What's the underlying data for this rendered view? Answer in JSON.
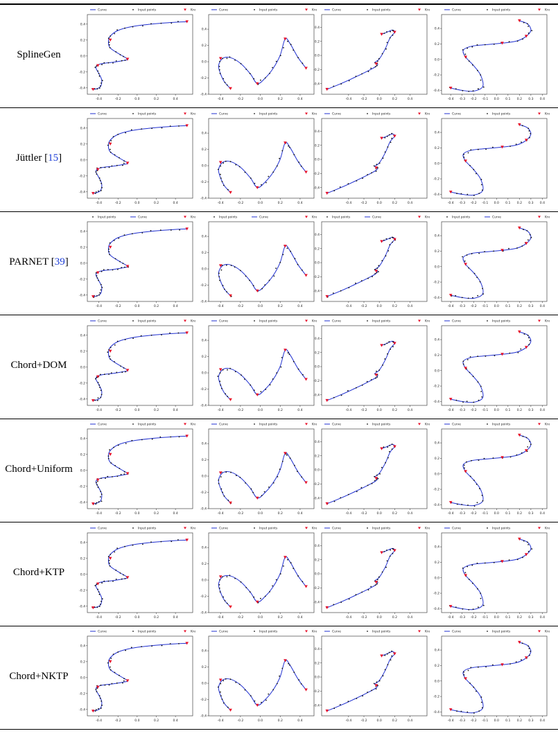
{
  "methods": [
    {
      "name": "SplineGen",
      "cite": "",
      "legend": [
        "Curve",
        "Input points",
        "Knot"
      ]
    },
    {
      "name": "Jüttler [",
      "cite": "15",
      "close": "]",
      "legend": [
        "Curve",
        "Input points",
        "Knot"
      ]
    },
    {
      "name": "PARNET [",
      "cite": "39",
      "close": "]",
      "legend": [
        "Input points",
        "Curve",
        "Knot"
      ]
    },
    {
      "name": "Chord+DOM",
      "cite": "",
      "legend": [
        "Curve",
        "Input points",
        "Knot"
      ]
    },
    {
      "name": "Chord+Uniform",
      "cite": "",
      "legend": [
        "Curve",
        "Input points",
        "Knot"
      ]
    },
    {
      "name": "Chord+KTP",
      "cite": "",
      "legend": [
        "Curve",
        "Input points",
        "Knot"
      ]
    },
    {
      "name": "Chord+NKTP",
      "cite": "",
      "legend": [
        "Curve",
        "Input points",
        "Knot"
      ]
    }
  ],
  "colors": {
    "curve": "#1f2fd0",
    "points": "#111111",
    "knot": "#e8102a",
    "frame": "#444444"
  },
  "chart_data": [
    {
      "type": "line",
      "panel": "column 1 (all rows)",
      "xlim": [
        -0.52,
        0.58
      ],
      "ylim": [
        -0.48,
        0.52
      ],
      "xticks": [
        "-0.4",
        "-0.2",
        "0.0",
        "0.2",
        "0.4"
      ],
      "yticks": [
        "-0.4",
        "-0.2",
        "0.0",
        "0.2",
        "0.4"
      ],
      "series": [
        {
          "name": "Curve",
          "x": [
            -0.46,
            -0.42,
            -0.38,
            -0.37,
            -0.4,
            -0.43,
            -0.41,
            -0.34,
            -0.26,
            -0.16,
            -0.1,
            -0.18,
            -0.28,
            -0.3,
            -0.28,
            -0.2,
            -0.05,
            0.15,
            0.35,
            0.52
          ],
          "y": [
            -0.42,
            -0.41,
            -0.38,
            -0.3,
            -0.22,
            -0.15,
            -0.11,
            -0.09,
            -0.08,
            -0.06,
            -0.04,
            0.02,
            0.1,
            0.18,
            0.25,
            0.32,
            0.37,
            0.4,
            0.42,
            0.43
          ]
        }
      ],
      "knots_x": [
        -0.46,
        -0.41,
        -0.1,
        -0.28,
        0.52
      ],
      "knots_y": [
        -0.42,
        -0.12,
        -0.04,
        0.2,
        0.43
      ]
    },
    {
      "type": "line",
      "panel": "column 2 (all rows)",
      "xlim": [
        -0.52,
        0.54
      ],
      "ylim": [
        -0.4,
        0.58
      ],
      "xticks": [
        "-0.4",
        "-0.2",
        "0.0",
        "0.2",
        "0.4"
      ],
      "yticks": [
        "-0.4",
        "-0.2",
        "0.0",
        "0.2",
        "0.4"
      ],
      "series": [
        {
          "name": "Curve",
          "x": [
            -0.3,
            -0.36,
            -0.4,
            -0.42,
            -0.38,
            -0.3,
            -0.2,
            -0.1,
            -0.03,
            0.05,
            0.13,
            0.2,
            0.25,
            0.3,
            0.38,
            0.46
          ],
          "y": [
            -0.33,
            -0.25,
            -0.15,
            -0.05,
            0.04,
            0.05,
            -0.02,
            -0.15,
            -0.27,
            -0.2,
            -0.08,
            0.08,
            0.28,
            0.22,
            0.05,
            -0.08
          ]
        }
      ],
      "knots_x": [
        -0.3,
        -0.4,
        -0.03,
        0.25,
        0.46
      ],
      "knots_y": [
        -0.33,
        0.04,
        -0.27,
        0.28,
        -0.08
      ]
    },
    {
      "type": "line",
      "panel": "column 3 (all rows)",
      "xlim": [
        -0.75,
        0.62
      ],
      "ylim": [
        -0.55,
        0.58
      ],
      "xticks": [
        "-0.4",
        "-0.2",
        "0.0",
        "0.2",
        "0.4"
      ],
      "yticks": [
        "-0.4",
        "-0.2",
        "0.0",
        "0.2",
        "0.4"
      ],
      "series": [
        {
          "name": "Curve",
          "x": [
            -0.68,
            -0.5,
            -0.3,
            -0.15,
            -0.05,
            -0.02,
            -0.06,
            0.0,
            0.08,
            0.14,
            0.2,
            0.17,
            0.1,
            0.03
          ],
          "y": [
            -0.48,
            -0.4,
            -0.3,
            -0.22,
            -0.16,
            -0.12,
            -0.1,
            -0.05,
            0.1,
            0.25,
            0.33,
            0.36,
            0.33,
            0.3
          ]
        }
      ],
      "knots_x": [
        -0.68,
        -0.04,
        0.2,
        0.03
      ],
      "knots_y": [
        -0.48,
        -0.12,
        0.33,
        0.3
      ]
    },
    {
      "type": "line",
      "panel": "column 4 (all rows)",
      "xlim": [
        -0.48,
        0.44
      ],
      "ylim": [
        -0.45,
        0.58
      ],
      "xticks": [
        "-0.4",
        "-0.3",
        "-0.2",
        "-0.1",
        "0.0",
        "0.1",
        "0.2",
        "0.3",
        "0.4"
      ],
      "yticks": [
        "-0.4",
        "-0.2",
        "0.0",
        "0.2",
        "0.4"
      ],
      "series": [
        {
          "name": "Curve",
          "x": [
            -0.4,
            -0.3,
            -0.2,
            -0.12,
            -0.14,
            -0.2,
            -0.27,
            -0.29,
            -0.22,
            -0.1,
            0.05,
            0.18,
            0.26,
            0.3,
            0.27,
            0.2
          ],
          "y": [
            -0.37,
            -0.4,
            -0.41,
            -0.35,
            -0.2,
            -0.08,
            0.03,
            0.12,
            0.17,
            0.19,
            0.21,
            0.24,
            0.3,
            0.38,
            0.46,
            0.5
          ]
        }
      ],
      "knots_x": [
        -0.4,
        -0.27,
        0.05,
        0.26,
        0.2
      ],
      "knots_y": [
        -0.37,
        0.03,
        0.21,
        0.3,
        0.5
      ]
    }
  ]
}
